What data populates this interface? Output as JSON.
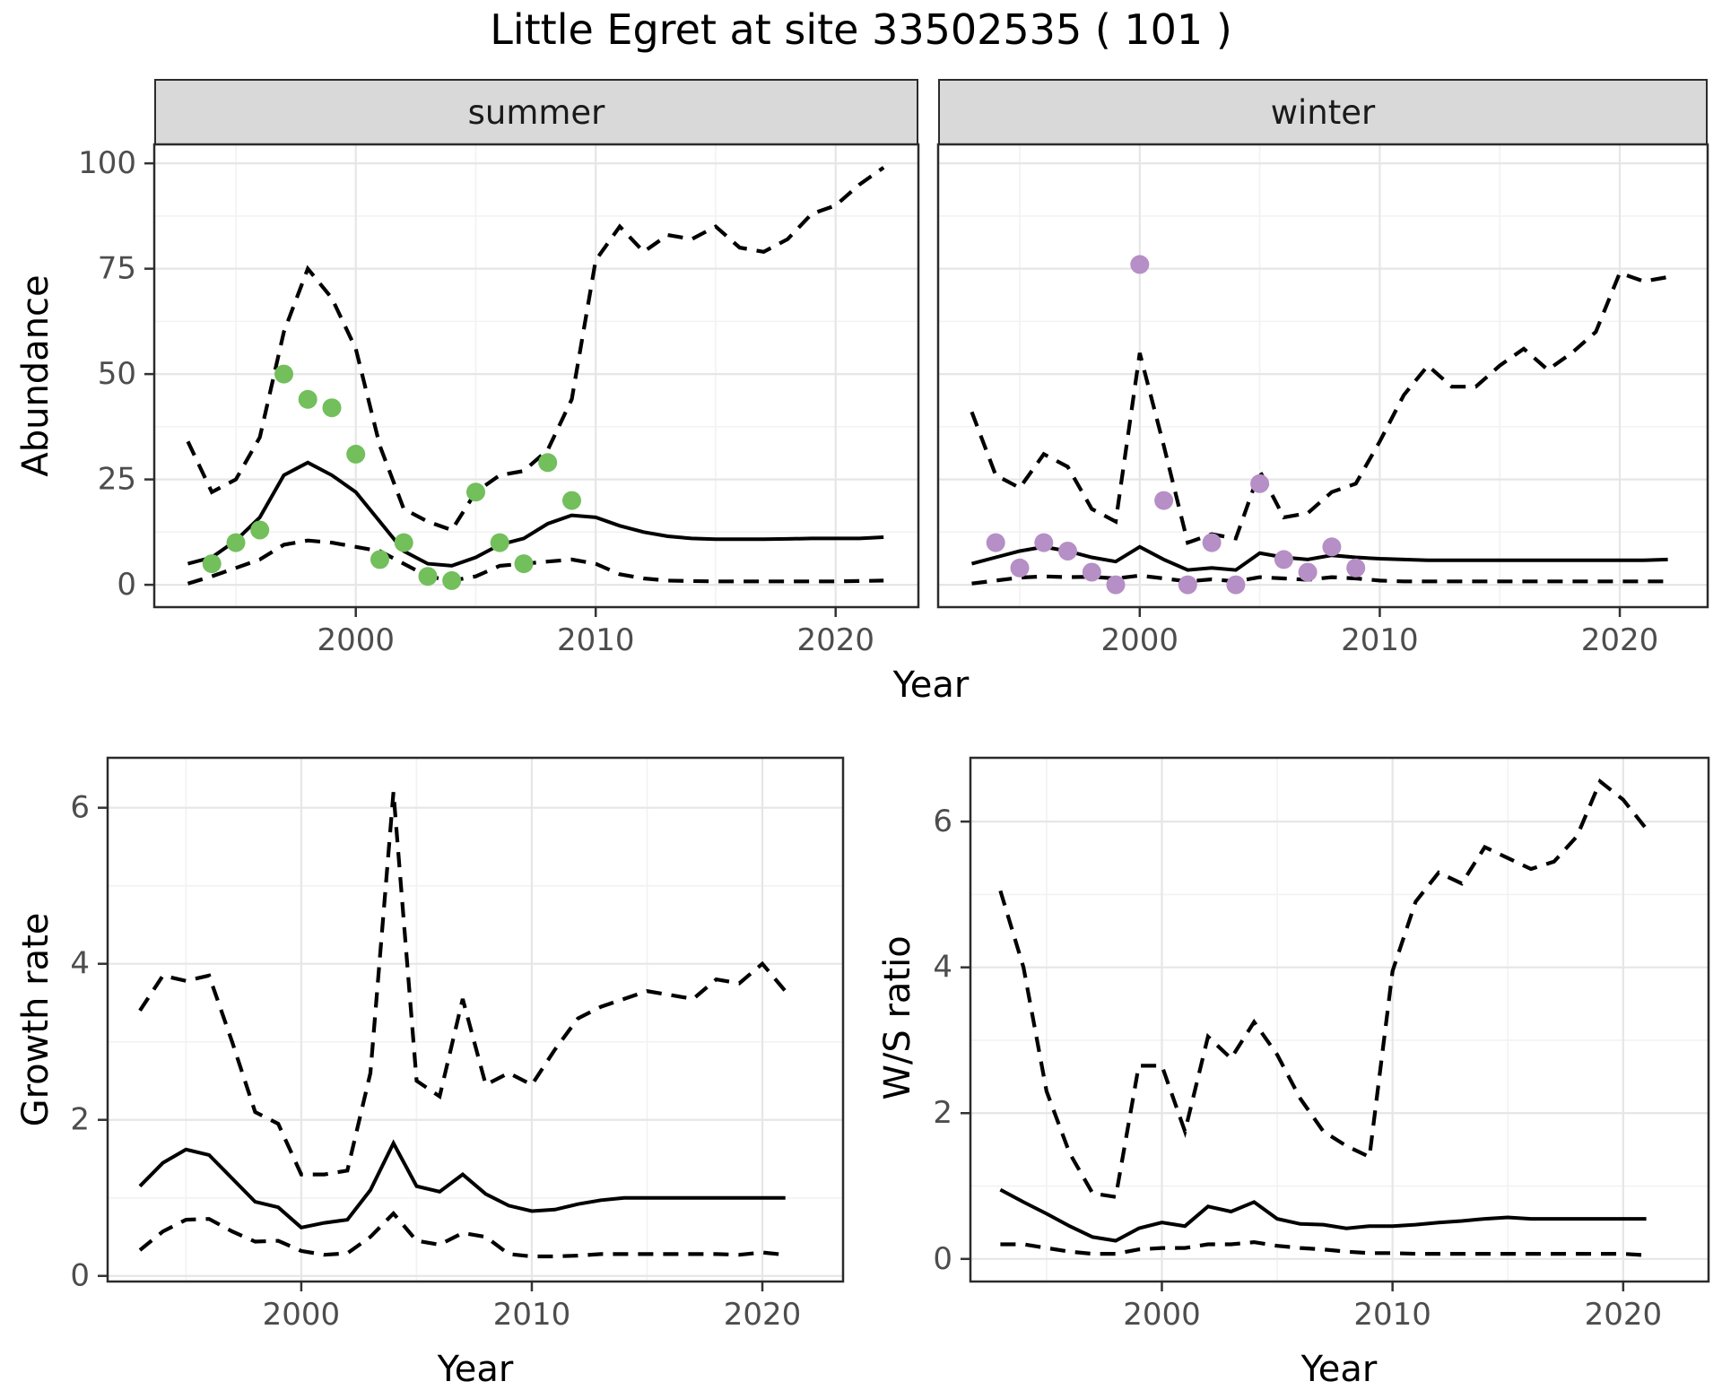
{
  "title": "Little Egret at site 33502535 ( 101 )",
  "facets": {
    "summer": "summer",
    "winter": "winter"
  },
  "axes": {
    "year": "Year",
    "abundance": "Abundance",
    "growth_rate": "Growth rate",
    "ws_ratio": "W/S ratio"
  },
  "colors": {
    "observed_summer": "#72bf5b",
    "observed_winter": "#b58fc5",
    "fit_line": "#000000",
    "ci_line": "#000000",
    "strip_bg": "#d9d9d9",
    "strip_border": "#2b2b2b",
    "panel_border": "#2b2b2b",
    "grid_major": "#e6e6e6",
    "grid_minor": "#f2f2f2",
    "tick_label": "#4d4d4d",
    "axis_title": "#000000"
  },
  "chart_data": [
    {
      "id": "abundance-summer",
      "type": "line",
      "facet_label": "summer",
      "xlabel": "Year",
      "ylabel": "Abundance",
      "xlim": [
        1991.6,
        2023.45
      ],
      "ylim": [
        -5.3,
        104.5
      ],
      "x_ticks": [
        2000,
        2010,
        2020
      ],
      "x_tick_labels": [
        "2000",
        "2010",
        "2020"
      ],
      "x_minor": [
        1995,
        2005,
        2015
      ],
      "y_ticks": [
        0,
        25,
        50,
        75,
        100
      ],
      "y_tick_labels": [
        "0",
        "25",
        "50",
        "75",
        "100"
      ],
      "y_minor": [
        12.5,
        37.5,
        62.5,
        87.5
      ],
      "show_y_tick_labels": true,
      "grid": true,
      "legend_position": "none",
      "years": [
        1993,
        1994,
        1995,
        1996,
        1997,
        1998,
        1999,
        2000,
        2001,
        2002,
        2003,
        2004,
        2005,
        2006,
        2007,
        2008,
        2009,
        2010,
        2011,
        2012,
        2013,
        2014,
        2015,
        2016,
        2017,
        2018,
        2019,
        2020,
        2021,
        2022
      ],
      "series": [
        {
          "name": "upper_ci",
          "type": "line",
          "style": "dashed",
          "values": [
            34,
            22,
            25,
            35,
            60,
            75,
            68,
            56,
            33,
            18,
            15,
            13,
            22,
            26,
            27,
            32,
            44,
            77,
            85,
            79,
            83,
            82,
            85,
            80,
            79,
            82,
            88,
            90,
            95,
            99
          ]
        },
        {
          "name": "lower_ci",
          "type": "line",
          "style": "dashed",
          "values": [
            0.3,
            2,
            4,
            6,
            9.5,
            10.5,
            10,
            9,
            8,
            5,
            2,
            1,
            2,
            4.5,
            5,
            5.5,
            6,
            5,
            2.5,
            1.5,
            1,
            0.9,
            0.8,
            0.8,
            0.8,
            0.8,
            0.8,
            0.8,
            0.9,
            1
          ]
        },
        {
          "name": "fit",
          "type": "line",
          "style": "solid",
          "values": [
            5,
            6.5,
            10.5,
            16,
            26,
            29,
            26,
            22,
            15,
            8,
            5,
            4.5,
            6.5,
            9.5,
            11,
            14.5,
            16.5,
            16,
            14,
            12.5,
            11.5,
            11,
            10.8,
            10.8,
            10.8,
            10.9,
            11,
            11,
            11,
            11.3
          ]
        },
        {
          "name": "observed",
          "type": "points",
          "color_key": "observed_summer",
          "points": [
            [
              1994,
              5
            ],
            [
              1995,
              10
            ],
            [
              1996,
              13
            ],
            [
              1997,
              50
            ],
            [
              1998,
              44
            ],
            [
              1999,
              42
            ],
            [
              2000,
              31
            ],
            [
              2001,
              6
            ],
            [
              2002,
              10
            ],
            [
              2003,
              2
            ],
            [
              2004,
              1
            ],
            [
              2005,
              22
            ],
            [
              2006,
              10
            ],
            [
              2007,
              5
            ],
            [
              2008,
              29
            ],
            [
              2009,
              20
            ]
          ]
        }
      ]
    },
    {
      "id": "abundance-winter",
      "type": "line",
      "facet_label": "winter",
      "xlabel": "Year",
      "ylabel": "Abundance",
      "xlim": [
        1991.6,
        2023.66
      ],
      "ylim": [
        -5.3,
        104.5
      ],
      "x_ticks": [
        2000,
        2010,
        2020
      ],
      "x_tick_labels": [
        "2000",
        "2010",
        "2020"
      ],
      "x_minor": [
        1995,
        2005,
        2015
      ],
      "y_ticks": [
        0,
        25,
        50,
        75,
        100
      ],
      "y_tick_labels": [
        "0",
        "25",
        "50",
        "75",
        "100"
      ],
      "y_minor": [
        12.5,
        37.5,
        62.5,
        87.5
      ],
      "show_y_tick_labels": false,
      "grid": true,
      "legend_position": "none",
      "years": [
        1993,
        1994,
        1995,
        1996,
        1997,
        1998,
        1999,
        2000,
        2001,
        2002,
        2003,
        2004,
        2005,
        2006,
        2007,
        2008,
        2009,
        2010,
        2011,
        2012,
        2013,
        2014,
        2015,
        2016,
        2017,
        2018,
        2019,
        2020,
        2021,
        2022
      ],
      "series": [
        {
          "name": "upper_ci",
          "type": "line",
          "style": "dashed",
          "values": [
            41,
            26,
            23,
            31,
            28,
            18,
            15,
            55,
            33,
            10,
            12,
            11,
            27,
            16,
            17,
            22,
            24,
            34,
            45,
            52,
            47,
            47,
            52,
            56,
            51,
            55,
            60,
            74,
            72,
            73
          ]
        },
        {
          "name": "lower_ci",
          "type": "line",
          "style": "dashed",
          "values": [
            0.3,
            1,
            1.7,
            2,
            1.8,
            1.9,
            1.5,
            2.2,
            1.5,
            0.8,
            1.3,
            0.8,
            1.8,
            1.5,
            1.2,
            1.8,
            1.5,
            1,
            0.8,
            0.8,
            0.8,
            0.8,
            0.8,
            0.8,
            0.8,
            0.8,
            0.8,
            0.8,
            0.8,
            0.8
          ]
        },
        {
          "name": "fit",
          "type": "line",
          "style": "solid",
          "values": [
            5,
            6.5,
            8,
            9,
            8,
            6.5,
            5.5,
            9,
            6,
            3.5,
            4,
            3.5,
            7.5,
            6.5,
            6,
            7,
            6.5,
            6.2,
            6,
            5.8,
            5.8,
            5.8,
            5.8,
            5.8,
            5.8,
            5.8,
            5.8,
            5.8,
            5.8,
            6
          ]
        },
        {
          "name": "observed",
          "type": "points",
          "color_key": "observed_winter",
          "points": [
            [
              1994,
              10
            ],
            [
              1995,
              4
            ],
            [
              1996,
              10
            ],
            [
              1997,
              8
            ],
            [
              1998,
              3
            ],
            [
              1999,
              0
            ],
            [
              2000,
              76
            ],
            [
              2001,
              20
            ],
            [
              2002,
              0
            ],
            [
              2003,
              10
            ],
            [
              2004,
              0
            ],
            [
              2005,
              24
            ],
            [
              2006,
              6
            ],
            [
              2007,
              3
            ],
            [
              2008,
              9
            ],
            [
              2009,
              4
            ]
          ]
        }
      ]
    },
    {
      "id": "growth-rate",
      "type": "line",
      "facet_label": "",
      "xlabel": "Year",
      "ylabel": "Growth rate",
      "xlim": [
        1991.6,
        2023.5
      ],
      "ylim": [
        -0.072,
        6.64
      ],
      "x_ticks": [
        2000,
        2010,
        2020
      ],
      "x_tick_labels": [
        "2000",
        "2010",
        "2020"
      ],
      "x_minor": [
        1995,
        2005,
        2015
      ],
      "y_ticks": [
        0,
        2,
        4,
        6
      ],
      "y_tick_labels": [
        "0",
        "2",
        "4",
        "6"
      ],
      "y_minor": [
        1,
        3,
        5
      ],
      "show_y_tick_labels": true,
      "grid": true,
      "legend_position": "none",
      "years": [
        1993,
        1994,
        1995,
        1996,
        1997,
        1998,
        1999,
        2000,
        2001,
        2002,
        2003,
        2004,
        2005,
        2006,
        2007,
        2008,
        2009,
        2010,
        2011,
        2012,
        2013,
        2014,
        2015,
        2016,
        2017,
        2018,
        2019,
        2020,
        2021
      ],
      "series": [
        {
          "name": "upper_ci",
          "type": "line",
          "style": "dashed",
          "values": [
            3.4,
            3.85,
            3.78,
            3.85,
            3.0,
            2.1,
            1.95,
            1.3,
            1.3,
            1.35,
            2.6,
            6.2,
            2.5,
            2.3,
            3.55,
            2.45,
            2.6,
            2.45,
            2.9,
            3.3,
            3.45,
            3.55,
            3.65,
            3.6,
            3.55,
            3.8,
            3.75,
            4.0,
            3.65
          ]
        },
        {
          "name": "lower_ci",
          "type": "line",
          "style": "dashed",
          "values": [
            0.33,
            0.57,
            0.72,
            0.73,
            0.57,
            0.44,
            0.45,
            0.32,
            0.27,
            0.29,
            0.5,
            0.8,
            0.45,
            0.4,
            0.55,
            0.5,
            0.28,
            0.25,
            0.25,
            0.26,
            0.28,
            0.28,
            0.28,
            0.28,
            0.28,
            0.28,
            0.27,
            0.3,
            0.27
          ]
        },
        {
          "name": "fit",
          "type": "line",
          "style": "solid",
          "values": [
            1.15,
            1.45,
            1.62,
            1.55,
            1.25,
            0.95,
            0.88,
            0.62,
            0.68,
            0.72,
            1.1,
            1.7,
            1.15,
            1.08,
            1.3,
            1.05,
            0.9,
            0.83,
            0.85,
            0.92,
            0.97,
            1.0,
            1.0,
            1.0,
            1.0,
            1.0,
            1.0,
            1.0,
            1.0
          ]
        }
      ]
    },
    {
      "id": "ws-ratio",
      "type": "line",
      "facet_label": "",
      "xlabel": "Year",
      "ylabel": "W/S ratio",
      "xlim": [
        1991.7,
        2023.7
      ],
      "ylim": [
        -0.31,
        6.875
      ],
      "x_ticks": [
        2000,
        2010,
        2020
      ],
      "x_tick_labels": [
        "2000",
        "2010",
        "2020"
      ],
      "x_minor": [
        1995,
        2005,
        2015
      ],
      "y_ticks": [
        0,
        2,
        4,
        6
      ],
      "y_tick_labels": [
        "0",
        "2",
        "4",
        "6"
      ],
      "y_minor": [
        1,
        3,
        5
      ],
      "show_y_tick_labels": true,
      "grid": true,
      "legend_position": "none",
      "years": [
        1993,
        1994,
        1995,
        1996,
        1997,
        1998,
        1999,
        2000,
        2001,
        2002,
        2003,
        2004,
        2005,
        2006,
        2007,
        2008,
        2009,
        2010,
        2011,
        2012,
        2013,
        2014,
        2015,
        2016,
        2017,
        2018,
        2019,
        2020,
        2021
      ],
      "series": [
        {
          "name": "upper_ci",
          "type": "line",
          "style": "dashed",
          "values": [
            5.05,
            4.0,
            2.3,
            1.45,
            0.9,
            0.85,
            2.65,
            2.65,
            1.75,
            3.05,
            2.75,
            3.25,
            2.8,
            2.2,
            1.75,
            1.55,
            1.4,
            3.95,
            4.9,
            5.3,
            5.15,
            5.65,
            5.5,
            5.35,
            5.45,
            5.8,
            6.55,
            6.3,
            5.9
          ]
        },
        {
          "name": "lower_ci",
          "type": "line",
          "style": "dashed",
          "values": [
            0.2,
            0.2,
            0.15,
            0.1,
            0.07,
            0.07,
            0.13,
            0.15,
            0.15,
            0.2,
            0.2,
            0.23,
            0.18,
            0.15,
            0.13,
            0.1,
            0.08,
            0.08,
            0.07,
            0.07,
            0.07,
            0.07,
            0.07,
            0.07,
            0.07,
            0.07,
            0.07,
            0.07,
            0.05
          ]
        },
        {
          "name": "fit",
          "type": "line",
          "style": "solid",
          "values": [
            0.95,
            0.78,
            0.62,
            0.45,
            0.3,
            0.25,
            0.42,
            0.5,
            0.45,
            0.72,
            0.65,
            0.78,
            0.55,
            0.48,
            0.47,
            0.42,
            0.45,
            0.45,
            0.47,
            0.5,
            0.52,
            0.55,
            0.57,
            0.55,
            0.55,
            0.55,
            0.55,
            0.55,
            0.55
          ]
        }
      ]
    }
  ]
}
